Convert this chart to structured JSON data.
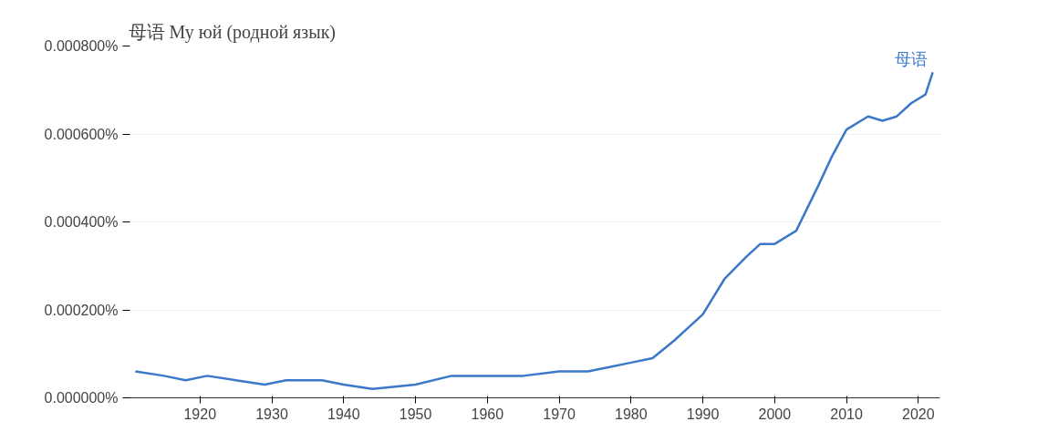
{
  "chart_data": {
    "type": "line",
    "title": "母语  Му юй (родной язык)",
    "x": [
      1911,
      1915,
      1918,
      1921,
      1925,
      1929,
      1932,
      1937,
      1940,
      1944,
      1950,
      1955,
      1960,
      1965,
      1970,
      1974,
      1977,
      1980,
      1983,
      1986,
      1990,
      1993,
      1996,
      1998,
      2000,
      2003,
      2006,
      2008,
      2010,
      2013,
      2015,
      2017,
      2019,
      2021,
      2022
    ],
    "series": [
      {
        "name": "母语",
        "color": "#3b78c9",
        "values": [
          6e-05,
          5e-05,
          4e-05,
          5e-05,
          4e-05,
          3e-05,
          4e-05,
          4e-05,
          3e-05,
          2e-05,
          3e-05,
          5e-05,
          5e-05,
          5e-05,
          6e-05,
          6e-05,
          7e-05,
          8e-05,
          9e-05,
          0.00013,
          0.00019,
          0.00027,
          0.00032,
          0.00035,
          0.00035,
          0.00038,
          0.00048,
          0.00055,
          0.00061,
          0.00064,
          0.00063,
          0.00064,
          0.00067,
          0.00069,
          0.00074
        ]
      }
    ],
    "xlim": [
      1910,
      2023
    ],
    "xticks": [
      1920,
      1930,
      1940,
      1950,
      1960,
      1970,
      1980,
      1990,
      2000,
      2010,
      2020
    ],
    "ylim": [
      0,
      0.0008
    ],
    "yticks": [
      {
        "value": 0,
        "label": "0.000000%"
      },
      {
        "value": 0.0002,
        "label": "0.000200%"
      },
      {
        "value": 0.0004,
        "label": "0.000400%"
      },
      {
        "value": 0.0006,
        "label": "0.000600%"
      },
      {
        "value": 0.0008,
        "label": "0.000800%"
      }
    ],
    "grid": "y",
    "marker": "none",
    "line_style": "solid"
  }
}
